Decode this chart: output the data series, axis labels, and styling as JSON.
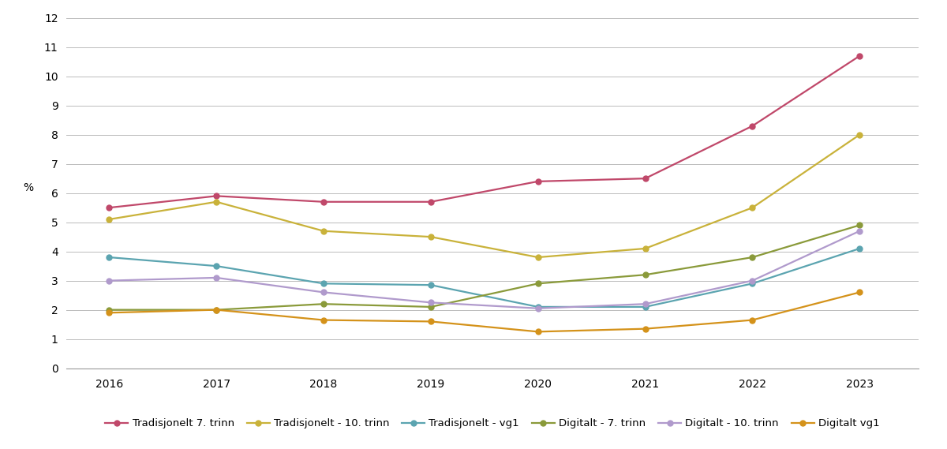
{
  "years": [
    2016,
    2017,
    2018,
    2019,
    2020,
    2021,
    2022,
    2023
  ],
  "series": [
    {
      "label": "Tradisjonelt 7. trinn",
      "color": "#c0486a",
      "marker": "o",
      "values": [
        5.5,
        5.9,
        5.7,
        5.7,
        6.4,
        6.5,
        8.3,
        10.7
      ]
    },
    {
      "label": "Tradisjonelt - 10. trinn",
      "color": "#c9b23a",
      "marker": "o",
      "values": [
        5.1,
        5.7,
        4.7,
        4.5,
        3.8,
        4.1,
        5.5,
        8.0
      ]
    },
    {
      "label": "Tradisjonelt - vg1",
      "color": "#5ba4b0",
      "marker": "o",
      "values": [
        3.8,
        3.5,
        2.9,
        2.85,
        2.1,
        2.1,
        2.9,
        4.1
      ]
    },
    {
      "label": "Digitalt - 7. trinn",
      "color": "#8a9a3a",
      "marker": "o",
      "values": [
        2.0,
        2.0,
        2.2,
        2.1,
        2.9,
        3.2,
        3.8,
        4.9
      ]
    },
    {
      "label": "Digitalt - 10. trinn",
      "color": "#b09acc",
      "marker": "o",
      "values": [
        3.0,
        3.1,
        2.6,
        2.25,
        2.05,
        2.2,
        3.0,
        4.7
      ]
    },
    {
      "label": "Digitalt vg1",
      "color": "#d4921a",
      "marker": "o",
      "values": [
        1.9,
        2.0,
        1.65,
        1.6,
        1.25,
        1.35,
        1.65,
        2.6
      ]
    }
  ],
  "ylabel": "%",
  "ylim": [
    0,
    12
  ],
  "yticks": [
    0,
    1,
    2,
    3,
    4,
    5,
    6,
    7,
    8,
    9,
    10,
    11,
    12
  ],
  "background_color": "#ffffff",
  "grid_color": "#bbbbbb",
  "legend_fontsize": 9.5,
  "axis_fontsize": 10,
  "tick_fontsize": 10
}
